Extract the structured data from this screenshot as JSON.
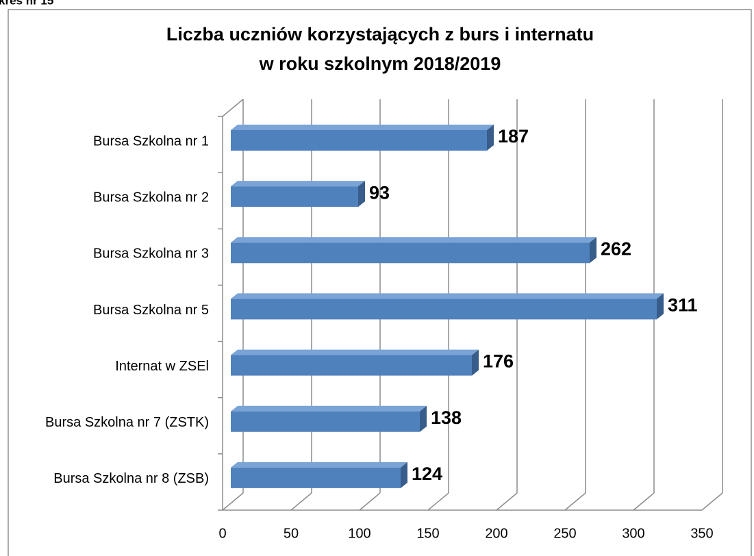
{
  "header": {
    "caption": "kres nr 15"
  },
  "chart_data": {
    "type": "bar",
    "orientation": "horizontal",
    "title": [
      "Liczba uczniów korzystających z burs i internatu",
      "w roku szkolnym 2018/2019"
    ],
    "categories": [
      "Bursa Szkolna nr 1",
      "Bursa Szkolna nr 2",
      "Bursa Szkolna nr 3",
      "Bursa Szkolna nr 5",
      "Internat w ZSEl",
      "Bursa Szkolna nr 7 (ZSTK)",
      "Bursa Szkolna nr 8 (ZSB)"
    ],
    "values": [
      187,
      93,
      262,
      311,
      176,
      138,
      124
    ],
    "color": "#4f81bd",
    "xlim": [
      0,
      350
    ],
    "xticks": [
      0,
      50,
      100,
      150,
      200,
      250,
      300,
      350
    ],
    "grid": true
  }
}
